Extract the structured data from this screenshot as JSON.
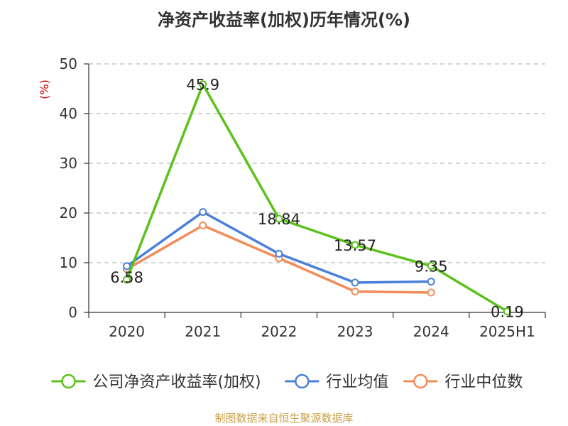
{
  "chart_data": {
    "type": "line",
    "title": "净资产收益率(加权)历年情况(%)",
    "ylabel": "(%)",
    "xlabel": "",
    "categories": [
      "2020",
      "2021",
      "2022",
      "2023",
      "2024",
      "2025H1"
    ],
    "ylim": [
      0,
      50
    ],
    "yticks": [
      0,
      10,
      20,
      30,
      40,
      50
    ],
    "grid": true,
    "legend_position": "bottom",
    "series": [
      {
        "name": "公司净资产收益率(加权)",
        "color": "#5cc21b",
        "values": [
          6.58,
          45.9,
          18.84,
          13.57,
          9.35,
          0.19
        ],
        "labels": [
          "6.58",
          "45.9",
          "18.84",
          "13.57",
          "9.35",
          "0.19"
        ],
        "show_labels": true
      },
      {
        "name": "行业均值",
        "color": "#4a7fdc",
        "values": [
          9.3,
          20.2,
          11.8,
          6.0,
          6.2,
          null
        ],
        "show_labels": false
      },
      {
        "name": "行业中位数",
        "color": "#f28c5a",
        "values": [
          8.7,
          17.5,
          10.9,
          4.2,
          4.0,
          null
        ],
        "show_labels": false
      }
    ]
  },
  "footer": {
    "source": "制图数据来自恒生聚源数据库"
  }
}
